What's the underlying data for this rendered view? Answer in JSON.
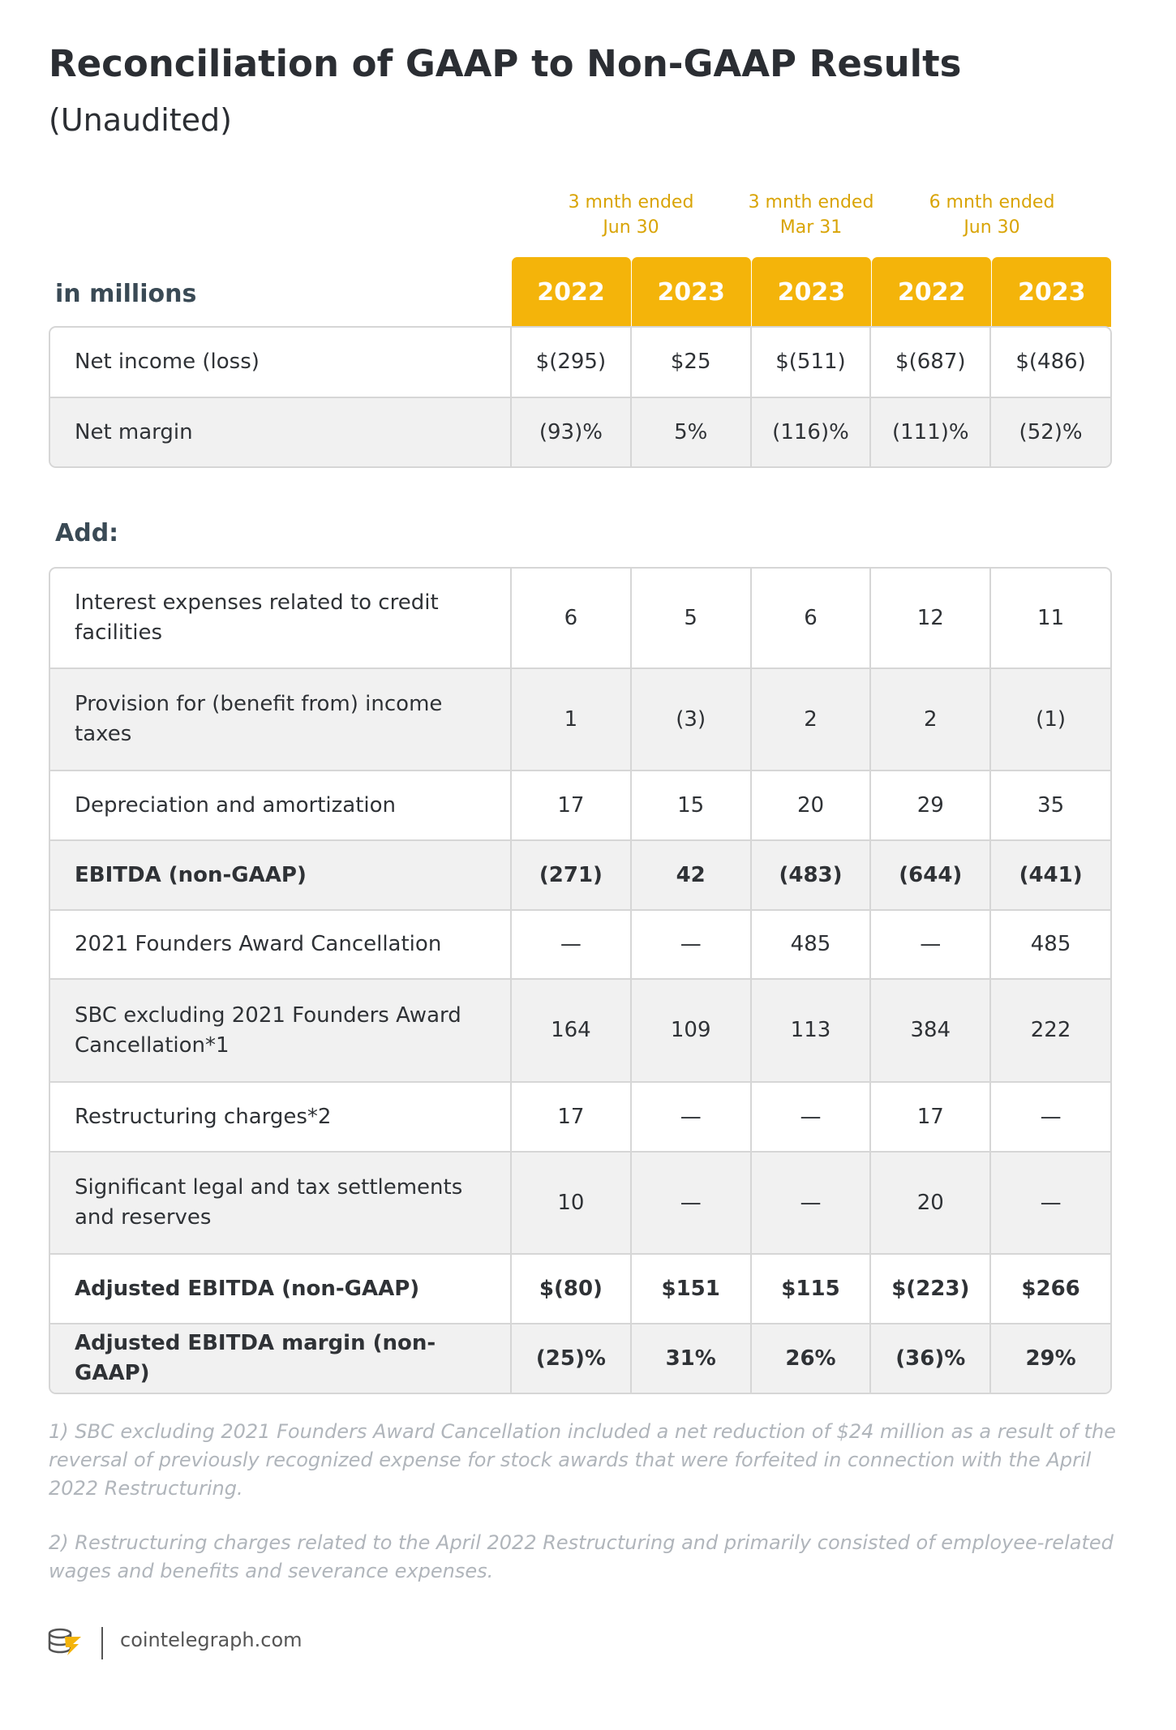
{
  "header": {
    "title": "Reconciliation of GAAP to Non-GAAP Results",
    "subtitle": "(Unaudited)"
  },
  "table": {
    "units_label": "in millions",
    "periods": [
      "3 mnth ended\nJun 30",
      "3 mnth ended\nMar 31",
      "6 mnth ended\nJun 30"
    ],
    "years": [
      "2022",
      "2023",
      "2023",
      "2022",
      "2023"
    ],
    "summary_rows": [
      [
        "Net income (loss)",
        "$(295)",
        "$25",
        "$(511)",
        "$(687)",
        "$(486)"
      ],
      [
        "Net margin",
        "(93)%",
        "5%",
        "(116)%",
        "(111)%",
        "(52)%"
      ]
    ],
    "add_label": "Add:",
    "add_rows": [
      [
        "Interest expenses related to credit facilities",
        "6",
        "5",
        "6",
        "12",
        "11"
      ],
      [
        "Provision for (benefit from) income taxes",
        "1",
        "(3)",
        "2",
        "2",
        "(1)"
      ],
      [
        "Depreciation and amortization",
        "17",
        "15",
        "20",
        "29",
        "35"
      ],
      [
        "EBITDA (non-GAAP)",
        "(271)",
        "42",
        "(483)",
        "(644)",
        "(441)"
      ],
      [
        "2021 Founders Award Cancellation",
        "—",
        "—",
        "485",
        "—",
        "485"
      ],
      [
        "SBC excluding 2021 Founders Award Cancellation*1",
        "164",
        "109",
        "113",
        "384",
        "222"
      ],
      [
        "Restructuring charges*2",
        "17",
        "—",
        "—",
        "17",
        "—"
      ],
      [
        "Significant legal and tax settlements and reserves",
        "10",
        "—",
        "—",
        "20",
        "—"
      ],
      [
        "Adjusted EBITDA (non-GAAP)",
        "$(80)",
        "$151",
        "$115",
        "$(223)",
        "$266"
      ],
      [
        "Adjusted EBITDA margin (non-GAAP)",
        "(25)%",
        "31%",
        "26%",
        "(36)%",
        "29%"
      ]
    ]
  },
  "footnotes": [
    "1) SBC excluding 2021 Founders Award Cancellation included a net reduction of $24 million as a result of the reversal of previously recognized expense for stock awards that were forfeited in connection with the April 2022 Restructuring.",
    "2) Restructuring charges related to the April 2022 Restructuring and primarily consisted of employee-related wages and benefits and severance expenses."
  ],
  "footer": {
    "brand": "cointelegraph.com"
  }
}
